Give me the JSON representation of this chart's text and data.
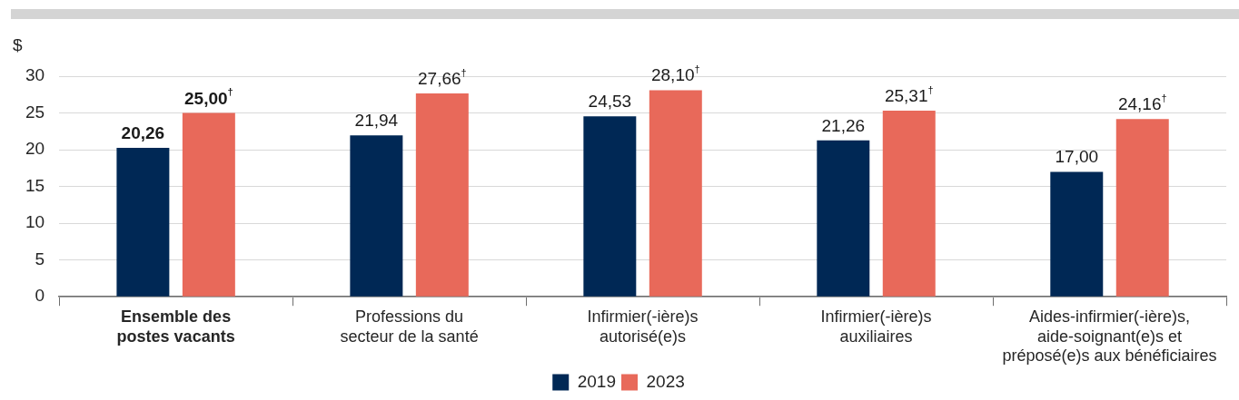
{
  "chart_data": {
    "type": "bar",
    "ylabel": "$",
    "categories": [
      "Ensemble des postes vacants",
      "Professions du secteur de la santé",
      "Infirmier(-ière)s autorisé(e)s",
      "Infirmier(-ière)s auxiliaires",
      "Aides-infirmier(-ière)s, aide-soignant(e)s et préposé(e)s aux bénéficiaires"
    ],
    "series": [
      {
        "name": "2019",
        "color": "#002855",
        "values": [
          20.26,
          21.94,
          24.53,
          21.26,
          17.0
        ],
        "value_labels": [
          "20,26",
          "21,94",
          "24,53",
          "21,26",
          "17,00"
        ]
      },
      {
        "name": "2023",
        "color": "#e8695a",
        "values": [
          25.0,
          27.66,
          28.1,
          25.31,
          24.16
        ],
        "value_labels": [
          "25,00$^{†}$",
          "27,66$^{†}$",
          "28,10$^{†}$",
          "25,31$^{†}$",
          "24,16$^{†}$"
        ]
      }
    ],
    "ylim": [
      0,
      30
    ],
    "yticks": [
      0,
      5,
      10,
      15,
      20,
      25,
      30
    ],
    "grid": "y",
    "legend": "bottom"
  }
}
